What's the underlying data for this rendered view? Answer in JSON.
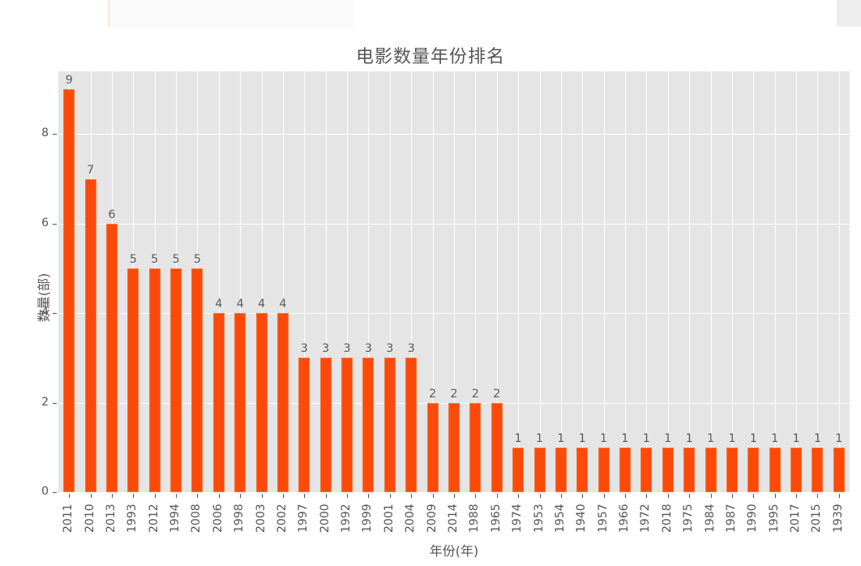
{
  "chart_data": {
    "type": "bar",
    "title": "电影数量年份排名",
    "xlabel": "年份(年)",
    "ylabel": "数量(部)",
    "ylim": [
      0,
      9.4
    ],
    "yticks": [
      0,
      2,
      4,
      6,
      8
    ],
    "grid": true,
    "bar_color": "#fd4a0a",
    "background": "#e5e5e5",
    "categories": [
      "2011",
      "2010",
      "2013",
      "1993",
      "2012",
      "1994",
      "2008",
      "2006",
      "1998",
      "2003",
      "2002",
      "1997",
      "2000",
      "1992",
      "1999",
      "2001",
      "2004",
      "2009",
      "2014",
      "1988",
      "1965",
      "1974",
      "1953",
      "1954",
      "1940",
      "1957",
      "1966",
      "1972",
      "2018",
      "1975",
      "1984",
      "1987",
      "1990",
      "1995",
      "2017",
      "2015",
      "1939"
    ],
    "values": [
      9,
      7,
      6,
      5,
      5,
      5,
      5,
      4,
      4,
      4,
      4,
      3,
      3,
      3,
      3,
      3,
      3,
      2,
      2,
      2,
      2,
      1,
      1,
      1,
      1,
      1,
      1,
      1,
      1,
      1,
      1,
      1,
      1,
      1,
      1,
      1,
      1
    ]
  }
}
